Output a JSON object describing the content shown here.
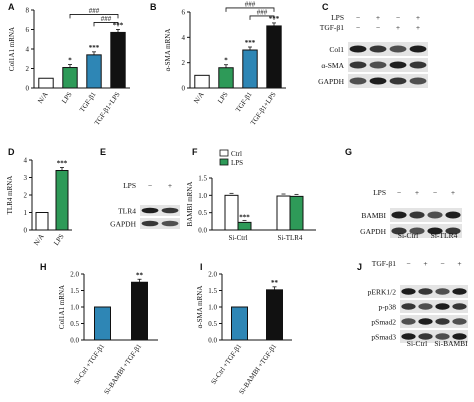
{
  "colors": {
    "white": "#ffffff",
    "green": "#2e9a58",
    "blue": "#2e86b5",
    "black": "#111111"
  },
  "panels": {
    "A": {
      "letter": "A"
    },
    "B": {
      "letter": "B"
    },
    "C": {
      "letter": "C",
      "columns": [
        [
          "−",
          "+",
          "−",
          "+"
        ],
        [
          "−",
          "−",
          "+",
          "+"
        ]
      ],
      "row_labels": [
        "LPS",
        "TGF-β1"
      ],
      "bands": [
        "Col1",
        "α-SMA",
        "GAPDH"
      ]
    },
    "D": {
      "letter": "D"
    },
    "E": {
      "letter": "E",
      "columns": [
        [
          "−",
          "+"
        ]
      ],
      "row_labels": [
        "LPS"
      ],
      "bands": [
        "TLR4",
        "GAPDH"
      ]
    },
    "F": {
      "letter": "F"
    },
    "G": {
      "letter": "G",
      "columns": [
        [
          "−",
          "+",
          "−",
          "+"
        ]
      ],
      "row_labels": [
        "LPS"
      ],
      "bands": [
        "BAMBI",
        "GAPDH"
      ],
      "groups": [
        "Si-Ctrl",
        "Si-TLR4"
      ]
    },
    "H": {
      "letter": "H"
    },
    "I": {
      "letter": "I"
    },
    "J": {
      "letter": "J",
      "columns": [
        [
          "−",
          "+",
          "−",
          "+"
        ]
      ],
      "row_labels": [
        "TGF-β1"
      ],
      "bands": [
        "pERK1/2",
        "p-p38",
        "pSmad2",
        "pSmad3"
      ],
      "groups": [
        "Si-Ctrl",
        "Si-BAMBI"
      ]
    }
  },
  "chart_data": [
    {
      "panel": "A",
      "type": "bar",
      "ylabel": "Col1A1 mRNA",
      "ylim": [
        0,
        8
      ],
      "yticks": [
        0,
        2,
        4,
        6,
        8
      ],
      "categories": [
        "N/A",
        "LPS",
        "TGF-β1",
        "TGF-β1+LPS"
      ],
      "values": [
        1,
        2.1,
        3.4,
        5.7
      ],
      "bar_colors": [
        "#ffffff",
        "#2e9a58",
        "#2e86b5",
        "#111111"
      ],
      "annotations": [
        "",
        "*",
        "***",
        "***"
      ],
      "brackets": [
        "###",
        "###"
      ]
    },
    {
      "panel": "B",
      "type": "bar",
      "ylabel": "α-SMA mRNA",
      "ylim": [
        0,
        6
      ],
      "yticks": [
        0,
        2,
        4,
        6
      ],
      "categories": [
        "N/A",
        "LPS",
        "TGF-β1",
        "TGF-β1+LPS"
      ],
      "values": [
        1,
        1.6,
        3.0,
        4.9
      ],
      "bar_colors": [
        "#ffffff",
        "#2e9a58",
        "#2e86b5",
        "#111111"
      ],
      "annotations": [
        "",
        "*",
        "***",
        "***"
      ],
      "brackets": [
        "###",
        "###"
      ]
    },
    {
      "panel": "D",
      "type": "bar",
      "ylabel": "TLR4 mRNA",
      "ylim": [
        0,
        4
      ],
      "yticks": [
        0,
        1,
        2,
        3,
        4
      ],
      "categories": [
        "N/A",
        "LPS"
      ],
      "values": [
        1,
        3.4
      ],
      "bar_colors": [
        "#ffffff",
        "#2e9a58"
      ],
      "annotations": [
        "",
        "***"
      ]
    },
    {
      "panel": "F",
      "type": "bar",
      "ylabel": "BAMBI mRNA",
      "ylim": [
        0,
        1.5
      ],
      "yticks": [
        0.0,
        0.5,
        1.0,
        1.5
      ],
      "categories": [
        "Si-Ctrl",
        "Si-TLR4"
      ],
      "series": [
        {
          "name": "Ctrl",
          "values": [
            1.0,
            0.98
          ],
          "color": "#ffffff"
        },
        {
          "name": "LPS",
          "values": [
            0.22,
            0.97
          ],
          "color": "#2e9a58"
        }
      ],
      "annotations": [
        "***",
        ""
      ],
      "legend": "top-left"
    },
    {
      "panel": "H",
      "type": "bar",
      "ylabel": "Col1A1 mRNA",
      "ylim": [
        0,
        2.0
      ],
      "yticks": [
        0.0,
        0.5,
        1.0,
        1.5,
        2.0
      ],
      "categories": [
        "Si-Ctrl +TGF-β1",
        "Si-BAMBI +TGF-β1"
      ],
      "values": [
        1.0,
        1.75
      ],
      "bar_colors": [
        "#2e86b5",
        "#111111"
      ],
      "annotations": [
        "",
        "**"
      ]
    },
    {
      "panel": "I",
      "type": "bar",
      "ylabel": "α-SMA mRNA",
      "ylim": [
        0,
        2.0
      ],
      "yticks": [
        0.0,
        0.5,
        1.0,
        1.5,
        2.0
      ],
      "categories": [
        "Si-Ctrl +TGF-β1",
        "Si-BAMBI +TGF-β1"
      ],
      "values": [
        1.0,
        1.52
      ],
      "bar_colors": [
        "#2e86b5",
        "#111111"
      ],
      "annotations": [
        "",
        "**"
      ]
    }
  ]
}
